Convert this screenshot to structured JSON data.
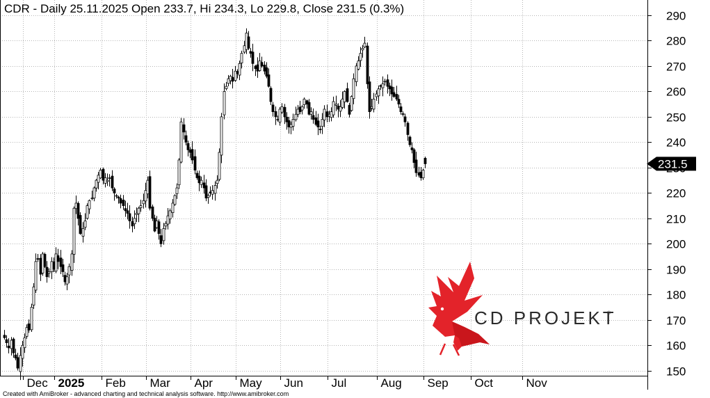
{
  "chart_data": {
    "type": "candlestick",
    "title": "CDR - Daily 25.11.2025 Open 233.7, Hi 234.3, Lo 229.8, Close 231.5 (0.3%)",
    "ylim": [
      145,
      293
    ],
    "y_ticks": [
      150,
      160,
      170,
      180,
      190,
      200,
      210,
      220,
      230,
      240,
      250,
      260,
      270,
      280,
      290
    ],
    "x_ticks": [
      {
        "label": "Dec",
        "bar": 9
      },
      {
        "label": "2025",
        "bar": 23,
        "year": true
      },
      {
        "label": "Feb",
        "bar": 44
      },
      {
        "label": "Mar",
        "bar": 64
      },
      {
        "label": "Apr",
        "bar": 84
      },
      {
        "label": "May",
        "bar": 104
      },
      {
        "label": "Jun",
        "bar": 124
      },
      {
        "label": "Jul",
        "bar": 145
      },
      {
        "label": "Aug",
        "bar": 167
      },
      {
        "label": "Sep",
        "bar": 188
      },
      {
        "label": "Oct",
        "bar": 209
      },
      {
        "label": "Nov",
        "bar": 232
      }
    ],
    "grid": true,
    "colors": {
      "bull": "#ffffff",
      "bear": "#000000",
      "outline": "#000000",
      "grid": "#b4b4b4",
      "label_bg": "#000000"
    },
    "last_close": 231.5,
    "last_close_label": "231.5",
    "closes": [
      163,
      161,
      159,
      162,
      157,
      155,
      151,
      156,
      160,
      163,
      167,
      166,
      175,
      183,
      193,
      194,
      188,
      196,
      191,
      187,
      189,
      193,
      190,
      196,
      193,
      191,
      189,
      185,
      187,
      191,
      196,
      214,
      216,
      210,
      204,
      206,
      209,
      215,
      217,
      218,
      222,
      225,
      227,
      229,
      225,
      226,
      225,
      226,
      222,
      220,
      219,
      218,
      216,
      215,
      213,
      212,
      209,
      207,
      210,
      212,
      214,
      215,
      217,
      221,
      225,
      214,
      210,
      205,
      209,
      204,
      200,
      206,
      208,
      211,
      213,
      216,
      219,
      222,
      233,
      248,
      244,
      240,
      237,
      236,
      233,
      229,
      226,
      224,
      225,
      222,
      218,
      219,
      220,
      221,
      223,
      225,
      236,
      250,
      260,
      262,
      265,
      266,
      264,
      268,
      267,
      271,
      275,
      278,
      283,
      277,
      275,
      271,
      269,
      268,
      272,
      270,
      268,
      266,
      262,
      256,
      252,
      250,
      249,
      253,
      254,
      250,
      248,
      246,
      247,
      249,
      251,
      253,
      252,
      254,
      257,
      255,
      251,
      252,
      249,
      247,
      246,
      245,
      249,
      253,
      250,
      251,
      252,
      256,
      255,
      253,
      254,
      257,
      260,
      256,
      251,
      258,
      265,
      270,
      272,
      275,
      277,
      279,
      263,
      252,
      254,
      257,
      259,
      261,
      262,
      263,
      264,
      262,
      261,
      259,
      258,
      257,
      255,
      252,
      251,
      248,
      243,
      239,
      237,
      232,
      228,
      227,
      226,
      229,
      231.5
    ]
  },
  "logo": {
    "text": "CD PROJEKT"
  },
  "footer": {
    "text": "Created with AmiBroker - advanced charting and technical analysis software. http://www.amibroker.com"
  }
}
